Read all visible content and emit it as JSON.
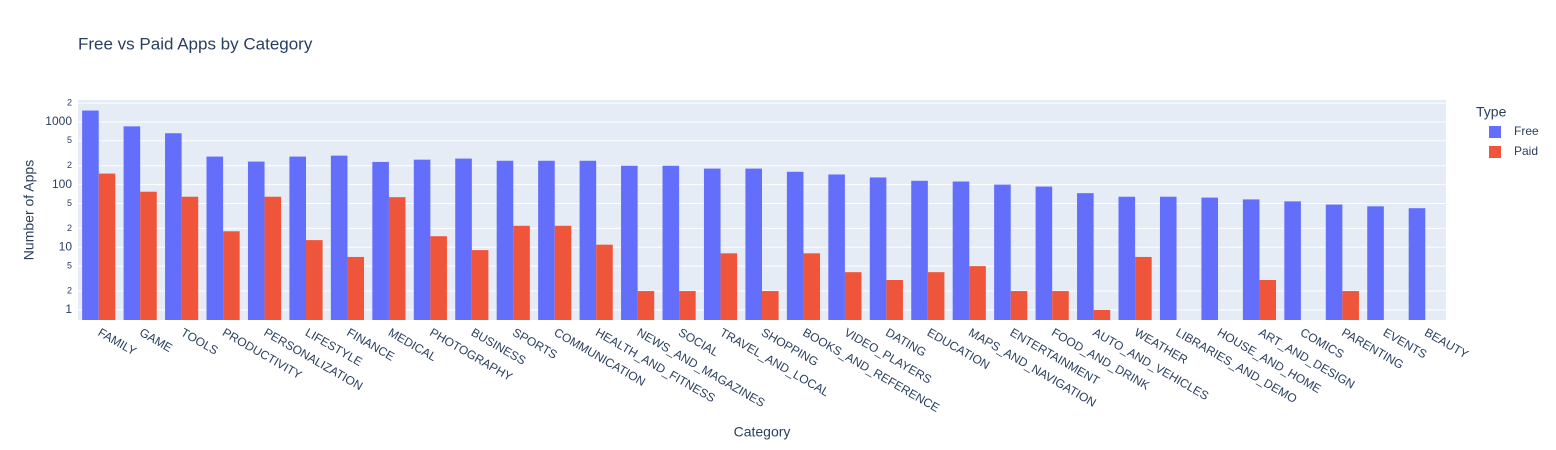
{
  "chart_data": {
    "type": "bar",
    "title": "Free vs Paid Apps by Category",
    "x_label": "Category",
    "y_label": "Number of Apps",
    "legend_title": "Type",
    "log_y": true,
    "grid": true,
    "legend_position": "right",
    "categories": [
      "FAMILY",
      "GAME",
      "TOOLS",
      "PRODUCTIVITY",
      "PERSONALIZATION",
      "LIFESTYLE",
      "FINANCE",
      "MEDICAL",
      "PHOTOGRAPHY",
      "BUSINESS",
      "SPORTS",
      "COMMUNICATION",
      "HEALTH_AND_FITNESS",
      "NEWS_AND_MAGAZINES",
      "SOCIAL",
      "TRAVEL_AND_LOCAL",
      "SHOPPING",
      "BOOKS_AND_REFERENCE",
      "VIDEO_PLAYERS",
      "DATING",
      "EDUCATION",
      "MAPS_AND_NAVIGATION",
      "ENTERTAINMENT",
      "FOOD_AND_DRINK",
      "AUTO_AND_VEHICLES",
      "WEATHER",
      "LIBRARIES_AND_DEMO",
      "HOUSE_AND_HOME",
      "ART_AND_DESIGN",
      "COMICS",
      "PARENTING",
      "EVENTS",
      "BEAUTY"
    ],
    "series": [
      {
        "name": "Free",
        "color": "#636efa",
        "values": [
          1520,
          850,
          660,
          280,
          233,
          280,
          290,
          230,
          250,
          260,
          240,
          240,
          240,
          200,
          200,
          180,
          180,
          160,
          145,
          130,
          115,
          112,
          100,
          93,
          73,
          64,
          64,
          62,
          58,
          54,
          48,
          45,
          42
        ]
      },
      {
        "name": "Paid",
        "color": "#ef553b",
        "values": [
          150,
          77,
          64,
          18,
          64,
          13,
          7,
          63,
          15,
          9,
          22,
          22,
          11,
          2,
          2,
          8,
          2,
          8,
          4,
          3,
          4,
          5,
          2,
          2,
          1,
          7,
          null,
          null,
          3,
          null,
          2,
          null,
          null
        ]
      }
    ],
    "ylim": [
      0.69,
      2240
    ],
    "yticks": [
      1,
      {
        "value": 2,
        "label": "2"
      },
      {
        "value": 5,
        "label": "5"
      },
      10,
      {
        "value": 20,
        "label": "2"
      },
      {
        "value": 50,
        "label": "5"
      },
      100,
      {
        "value": 200,
        "label": "2"
      },
      {
        "value": 500,
        "label": "5"
      },
      1000,
      {
        "value": 2000,
        "label": "2"
      }
    ]
  }
}
